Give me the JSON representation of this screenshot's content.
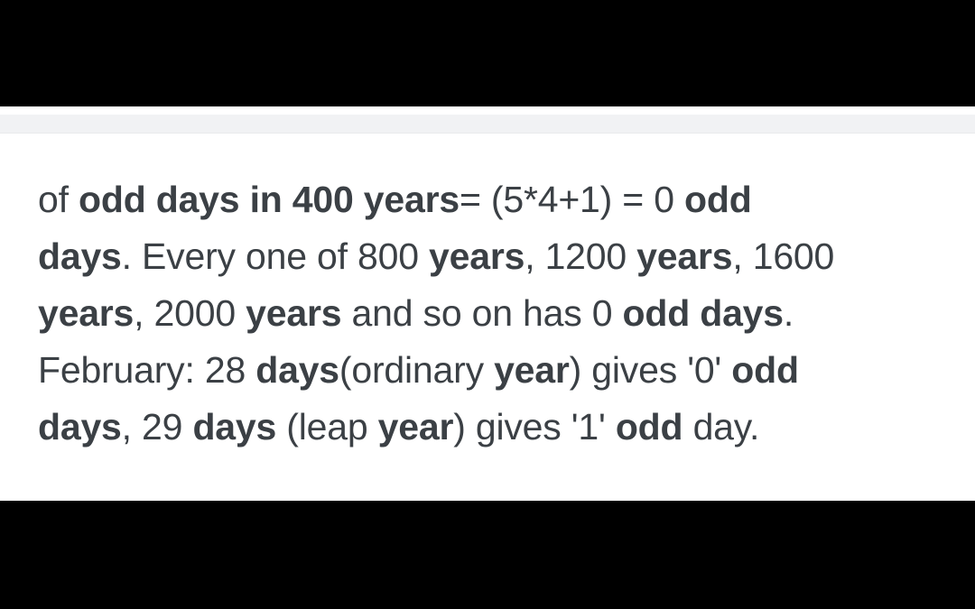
{
  "page": {
    "background_color": "#000000",
    "content_background": "#ffffff",
    "strip_color": "#f1f2f4",
    "strip_border_color": "#e8eaec",
    "text_color": "#3b4045"
  },
  "content": {
    "full_text": "of odd days in 400 years= (5*4+1) = 0 odd days. Every one of 800 years, 1200 years, 1600 years, 2000 years and so on has 0 odd days. February: 28 days(ordinary year) gives '0' odd days, 29 days (leap year) gives '1' odd day.",
    "lines": [
      [
        {
          "text": "of ",
          "bold": false
        },
        {
          "text": "odd days in 400 years",
          "bold": true
        },
        {
          "text": "= (5*4+1) = 0 ",
          "bold": false
        },
        {
          "text": "odd",
          "bold": true
        }
      ],
      [
        {
          "text": "days",
          "bold": true
        },
        {
          "text": ". Every one of 800 ",
          "bold": false
        },
        {
          "text": "years",
          "bold": true
        },
        {
          "text": ", 1200 ",
          "bold": false
        },
        {
          "text": "years",
          "bold": true
        },
        {
          "text": ", 1600",
          "bold": false
        }
      ],
      [
        {
          "text": "years",
          "bold": true
        },
        {
          "text": ", 2000 ",
          "bold": false
        },
        {
          "text": "years",
          "bold": true
        },
        {
          "text": " and so on has 0 ",
          "bold": false
        },
        {
          "text": "odd days",
          "bold": true
        },
        {
          "text": ".",
          "bold": false
        }
      ],
      [
        {
          "text": "February: 28 ",
          "bold": false
        },
        {
          "text": "days",
          "bold": true
        },
        {
          "text": "(ordinary ",
          "bold": false
        },
        {
          "text": "year",
          "bold": true
        },
        {
          "text": ") gives '0' ",
          "bold": false
        },
        {
          "text": "odd",
          "bold": true
        }
      ],
      [
        {
          "text": "days",
          "bold": true
        },
        {
          "text": ", 29 ",
          "bold": false
        },
        {
          "text": "days",
          "bold": true
        },
        {
          "text": " (leap ",
          "bold": false
        },
        {
          "text": "year",
          "bold": true
        },
        {
          "text": ") gives '1' ",
          "bold": false
        },
        {
          "text": "odd",
          "bold": true
        },
        {
          "text": " day.",
          "bold": false
        }
      ]
    ]
  }
}
